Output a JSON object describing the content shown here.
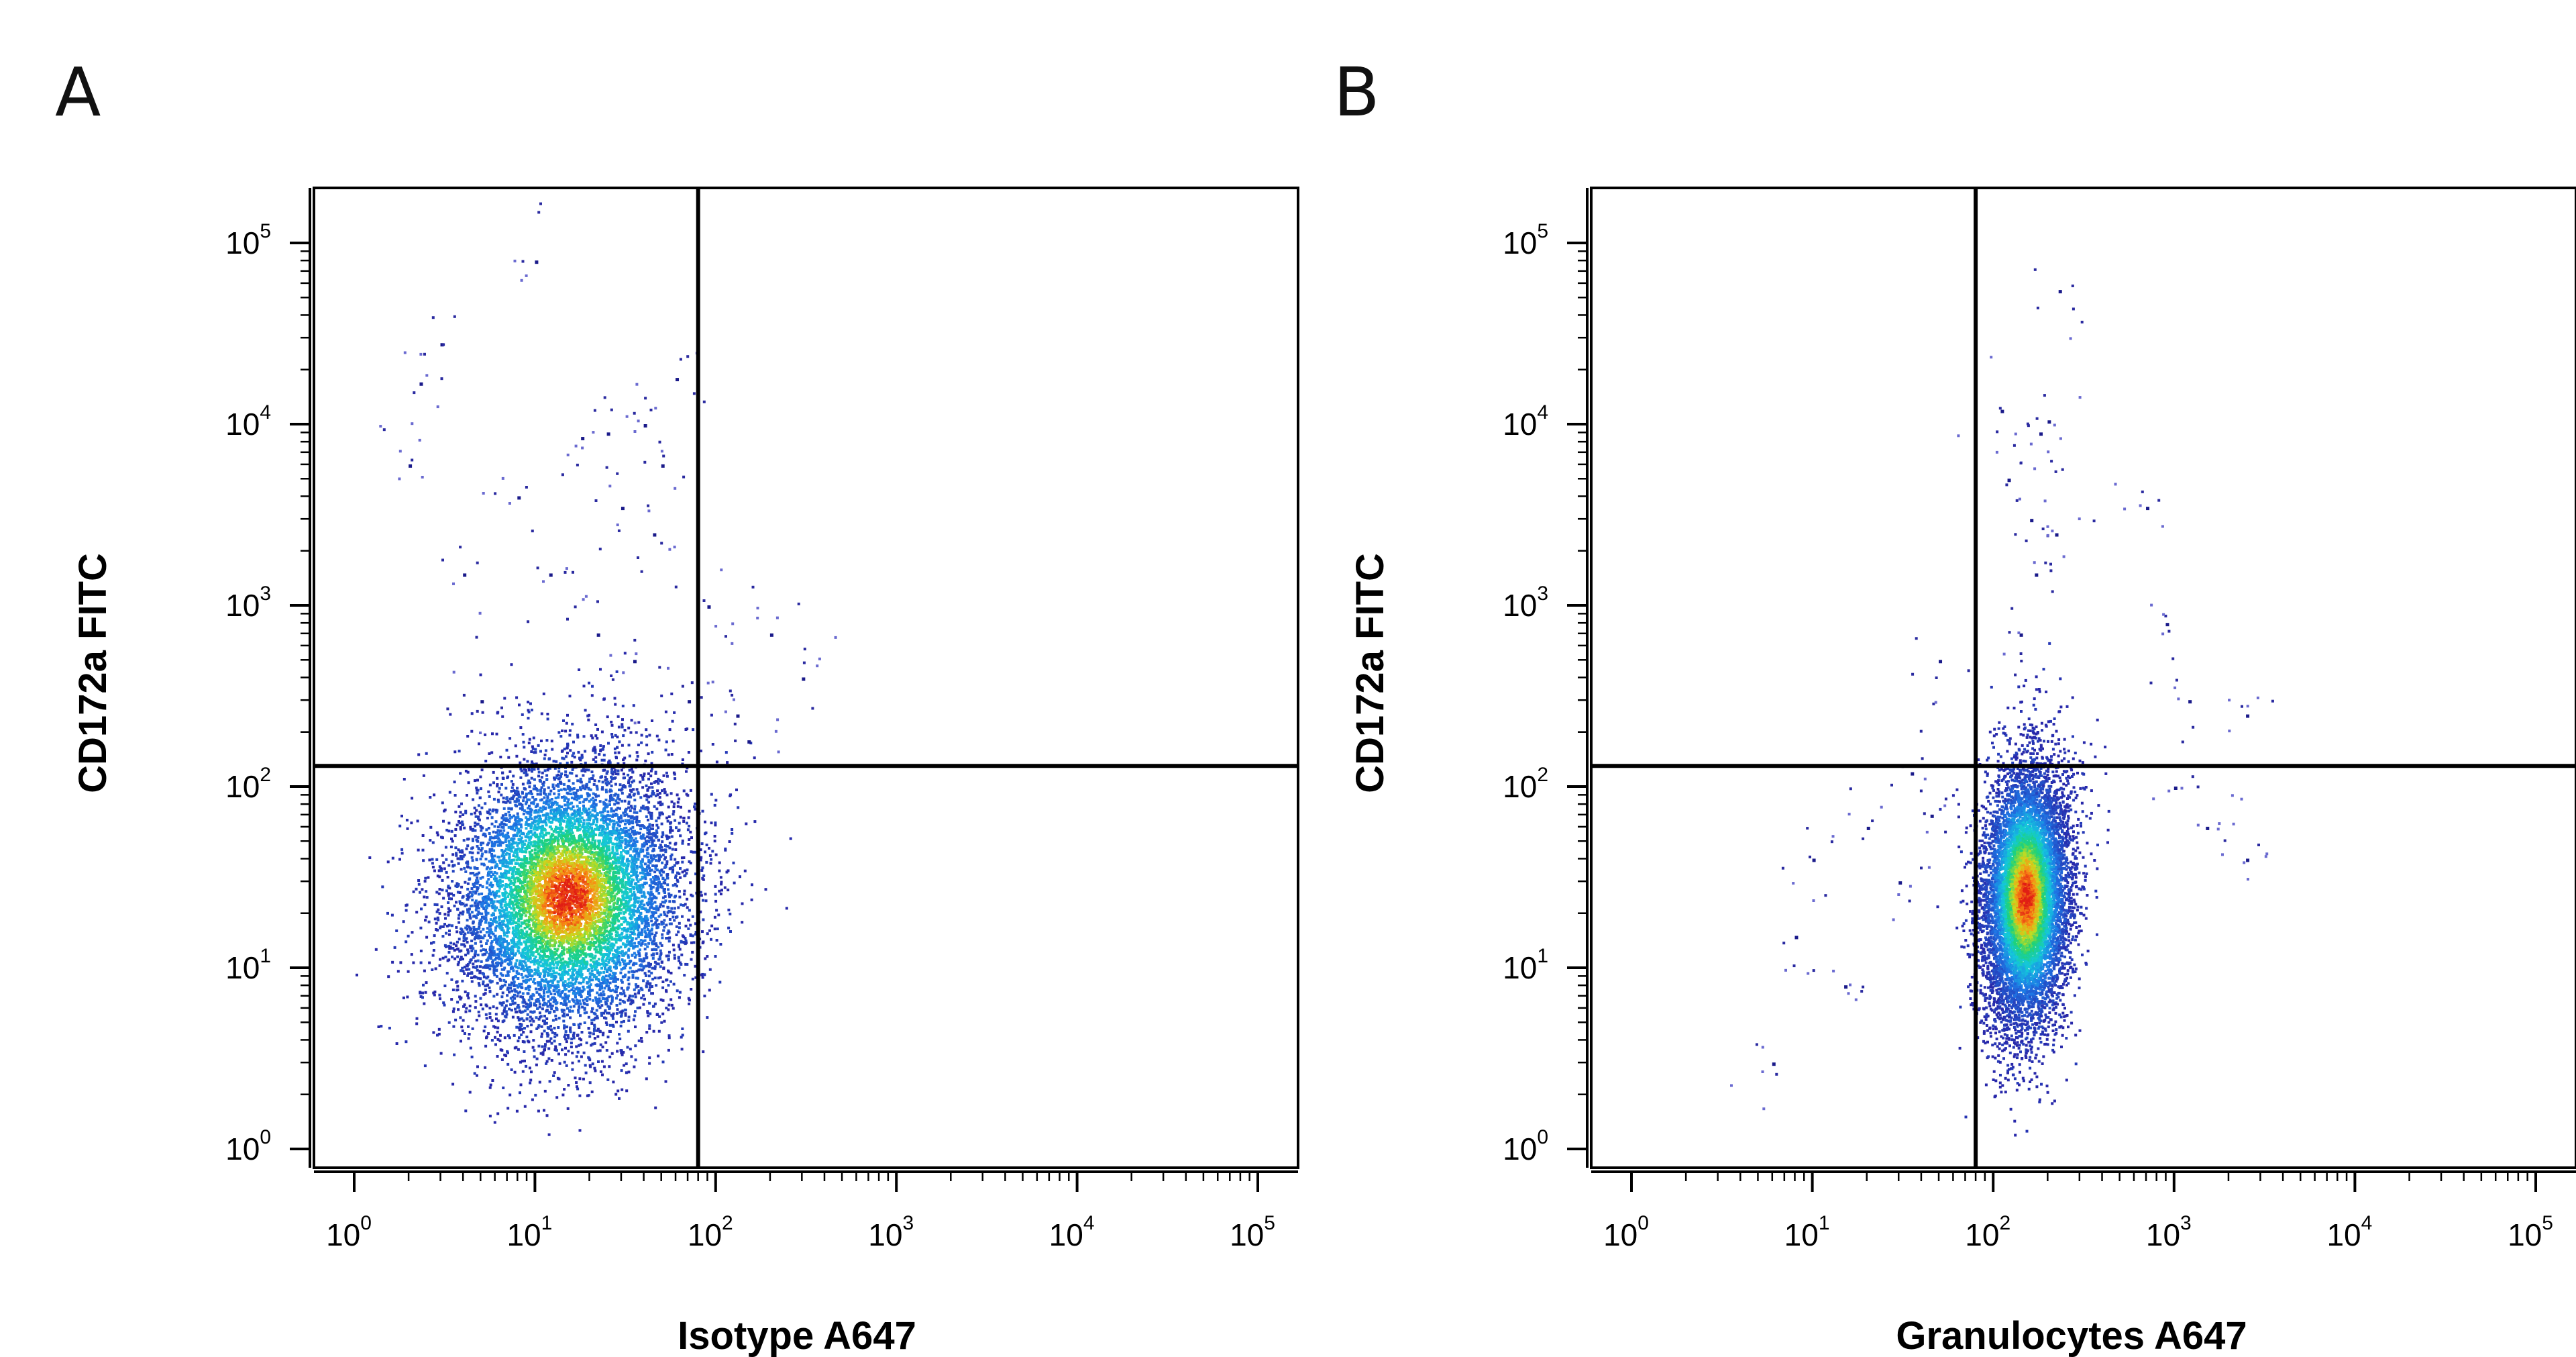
{
  "chart_data": [
    {
      "panel": "A",
      "type": "scatter",
      "xlabel": "Isotype A647",
      "ylabel": "CD172a FITC",
      "x_scale": "log",
      "y_scale": "log",
      "xlim": [
        1,
        100000
      ],
      "ylim": [
        1,
        100000
      ],
      "x_ticks": [
        {
          "base": "10",
          "exp": "0"
        },
        {
          "base": "10",
          "exp": "1"
        },
        {
          "base": "10",
          "exp": "2"
        },
        {
          "base": "10",
          "exp": "3"
        },
        {
          "base": "10",
          "exp": "4"
        },
        {
          "base": "10",
          "exp": "5"
        }
      ],
      "y_ticks": [
        {
          "base": "10",
          "exp": "0"
        },
        {
          "base": "10",
          "exp": "1"
        },
        {
          "base": "10",
          "exp": "2"
        },
        {
          "base": "10",
          "exp": "3"
        },
        {
          "base": "10",
          "exp": "4"
        },
        {
          "base": "10",
          "exp": "5"
        }
      ],
      "quadrant_gate": {
        "x": 80,
        "y": 130
      },
      "population": {
        "center_x": 15,
        "center_y": 25,
        "log_sd_x": 0.32,
        "log_sd_y": 0.38,
        "corr": 0.1
      },
      "scattered_points": [
        [
          10,
          80000
        ],
        [
          3,
          28000
        ],
        [
          2.3,
          17000
        ],
        [
          25,
          9000
        ],
        [
          40,
          10000
        ],
        [
          18,
          8500
        ],
        [
          50,
          6000
        ],
        [
          8,
          4000
        ],
        [
          30,
          3500
        ],
        [
          60,
          18000
        ],
        [
          12,
          1500
        ],
        [
          45,
          2500
        ],
        [
          22,
          700
        ],
        [
          35,
          500
        ],
        [
          90,
          1000
        ],
        [
          200,
          700
        ],
        [
          300,
          400
        ],
        [
          130,
          250
        ],
        [
          150,
          180
        ],
        [
          70,
          300
        ],
        [
          5,
          300
        ],
        [
          4,
          1500
        ],
        [
          2,
          6000
        ]
      ],
      "grid": false
    },
    {
      "panel": "B",
      "type": "scatter",
      "xlabel": "Granulocytes A647",
      "ylabel": "CD172a FITC",
      "x_scale": "log",
      "y_scale": "log",
      "xlim": [
        1,
        100000
      ],
      "ylim": [
        1,
        100000
      ],
      "x_ticks": [
        {
          "base": "10",
          "exp": "0"
        },
        {
          "base": "10",
          "exp": "1"
        },
        {
          "base": "10",
          "exp": "2"
        },
        {
          "base": "10",
          "exp": "3"
        },
        {
          "base": "10",
          "exp": "4"
        },
        {
          "base": "10",
          "exp": "5"
        }
      ],
      "y_ticks": [
        {
          "base": "10",
          "exp": "0"
        },
        {
          "base": "10",
          "exp": "1"
        },
        {
          "base": "10",
          "exp": "2"
        },
        {
          "base": "10",
          "exp": "3"
        },
        {
          "base": "10",
          "exp": "4"
        },
        {
          "base": "10",
          "exp": "5"
        }
      ],
      "quadrant_gate": {
        "x": 80,
        "y": 130
      },
      "population": {
        "center_x": 150,
        "center_y": 25,
        "log_sd_x": 0.12,
        "log_sd_y": 0.36,
        "corr": 0.15
      },
      "scattered_points": [
        [
          230,
          55000
        ],
        [
          110,
          12000
        ],
        [
          180,
          9000
        ],
        [
          200,
          10500
        ],
        [
          120,
          5000
        ],
        [
          160,
          3000
        ],
        [
          220,
          2500
        ],
        [
          700,
          3500
        ],
        [
          900,
          800
        ],
        [
          1200,
          300
        ],
        [
          2500,
          250
        ],
        [
          50,
          500
        ],
        [
          35,
          120
        ],
        [
          20,
          60
        ],
        [
          10,
          40
        ],
        [
          6,
          3
        ],
        [
          8,
          15
        ],
        [
          15,
          8
        ],
        [
          30,
          30
        ],
        [
          45,
          70
        ],
        [
          1000,
          100
        ],
        [
          2500,
          40
        ],
        [
          1500,
          60
        ],
        [
          170,
          1500
        ],
        [
          140,
          700
        ]
      ],
      "grid": false
    }
  ]
}
